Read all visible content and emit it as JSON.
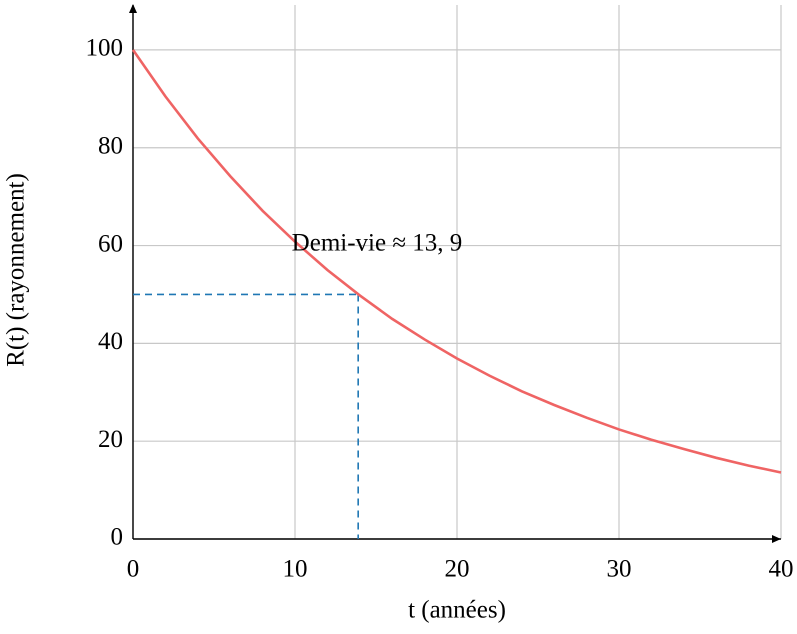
{
  "chart_data": {
    "type": "line",
    "xlabel": "t (années)",
    "ylabel": "R(t) (rayonnement)",
    "annotation": "Demi-vie ≈ 13, 9",
    "x": [
      0,
      2,
      4,
      6,
      8,
      10,
      12,
      14,
      16,
      18,
      20,
      22,
      24,
      26,
      28,
      30,
      32,
      34,
      36,
      38,
      40
    ],
    "values": [
      100,
      90.5,
      81.9,
      74.2,
      67.1,
      60.8,
      55.0,
      49.8,
      45.0,
      40.8,
      36.9,
      33.4,
      30.2,
      27.4,
      24.8,
      22.4,
      20.3,
      18.4,
      16.6,
      15.0,
      13.6
    ],
    "color": "#ef6464",
    "half_life": {
      "x": 13.9,
      "y": 50,
      "color": "#1f77b4"
    },
    "xlim": [
      0,
      40
    ],
    "ylim": [
      0,
      110
    ],
    "xticks": [
      0,
      10,
      20,
      30,
      40
    ],
    "yticks": [
      0,
      20,
      40,
      60,
      80,
      100
    ],
    "grid": true
  }
}
